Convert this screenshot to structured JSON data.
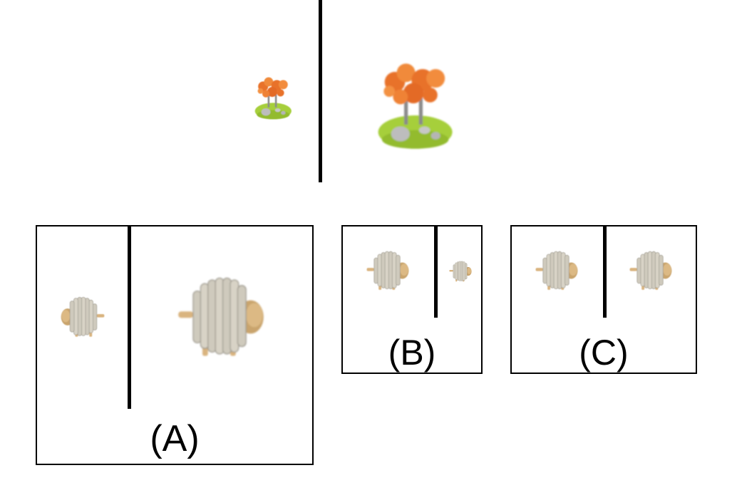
{
  "panels": [
    {
      "label": "(A)"
    },
    {
      "label": "(B)"
    },
    {
      "label": "(C)"
    }
  ],
  "icons": {
    "reference": "tree-on-grass-island-icon",
    "candidate": "wooden-sheep-icon"
  },
  "colors": {
    "divider": "#000000",
    "border": "#000000",
    "foliage": "#e8722c",
    "grass": "#a6cf3a",
    "rock": "#b9b9b9",
    "coil": "#cfcabd",
    "wood": "#d9b47f"
  }
}
